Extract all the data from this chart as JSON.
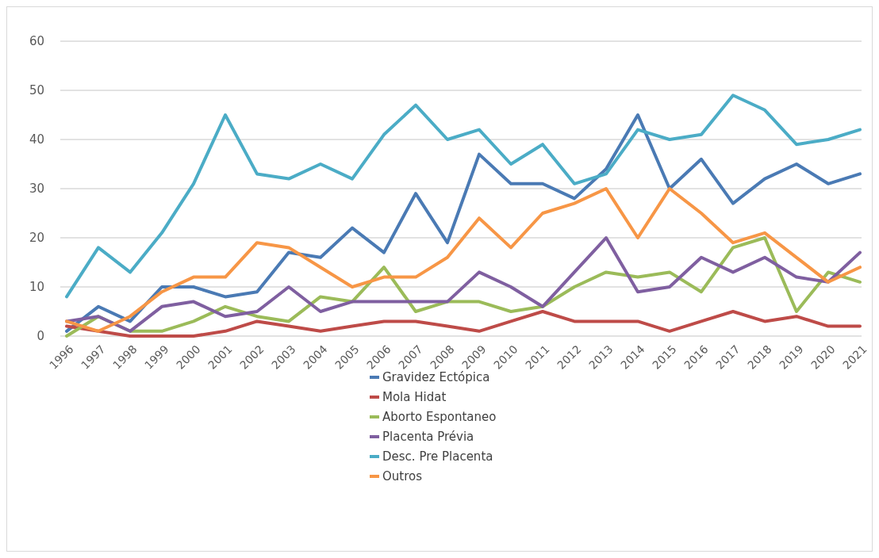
{
  "chart_data": {
    "type": "line",
    "categories": [
      "1996",
      "1997",
      "1998",
      "1999",
      "2000",
      "2001",
      "2002",
      "2003",
      "2004",
      "2005",
      "2006",
      "2007",
      "2008",
      "2009",
      "2010",
      "2011",
      "2012",
      "2013",
      "2014",
      "2015",
      "2016",
      "2017",
      "2018",
      "2019",
      "2020",
      "2021"
    ],
    "ylim": [
      0,
      60
    ],
    "yticks": [
      0,
      10,
      20,
      30,
      40,
      50,
      60
    ],
    "grid": "y",
    "legend": "bottom",
    "line_style": "solid",
    "marker": "none",
    "series": [
      {
        "name": "Gravidez Ectópica",
        "color": "#4a7ab4",
        "values": [
          1,
          6,
          3,
          10,
          10,
          8,
          9,
          17,
          16,
          22,
          17,
          29,
          19,
          37,
          31,
          31,
          28,
          34,
          45,
          30,
          36,
          27,
          32,
          35,
          31,
          33
        ]
      },
      {
        "name": "Mola Hidat",
        "color": "#be4b48",
        "values": [
          2,
          1,
          0,
          0,
          0,
          1,
          3,
          2,
          1,
          2,
          3,
          3,
          2,
          1,
          3,
          5,
          3,
          3,
          3,
          1,
          3,
          5,
          3,
          4,
          2,
          2
        ]
      },
      {
        "name": "Aborto Espontaneo",
        "color": "#9bbb59",
        "values": [
          0,
          4,
          1,
          1,
          3,
          6,
          4,
          3,
          8,
          7,
          14,
          5,
          7,
          7,
          5,
          6,
          10,
          13,
          12,
          13,
          9,
          18,
          20,
          5,
          13,
          11
        ]
      },
      {
        "name": "Placenta Prévia",
        "color": "#7f5fa0",
        "values": [
          3,
          4,
          1,
          6,
          7,
          4,
          5,
          10,
          5,
          7,
          7,
          7,
          7,
          13,
          10,
          6,
          13,
          20,
          9,
          10,
          16,
          13,
          16,
          12,
          11,
          17
        ]
      },
      {
        "name": "Desc. Pre Placenta",
        "color": "#4bacc6",
        "values": [
          8,
          18,
          13,
          21,
          31,
          45,
          33,
          32,
          35,
          32,
          41,
          47,
          40,
          42,
          35,
          39,
          31,
          33,
          42,
          40,
          41,
          49,
          46,
          39,
          40,
          42
        ]
      },
      {
        "name": "Outros",
        "color": "#f79646",
        "values": [
          3,
          1,
          4,
          9,
          12,
          12,
          19,
          18,
          14,
          10,
          12,
          12,
          16,
          24,
          18,
          25,
          27,
          30,
          20,
          30,
          25,
          19,
          21,
          16,
          11,
          14
        ]
      }
    ]
  }
}
